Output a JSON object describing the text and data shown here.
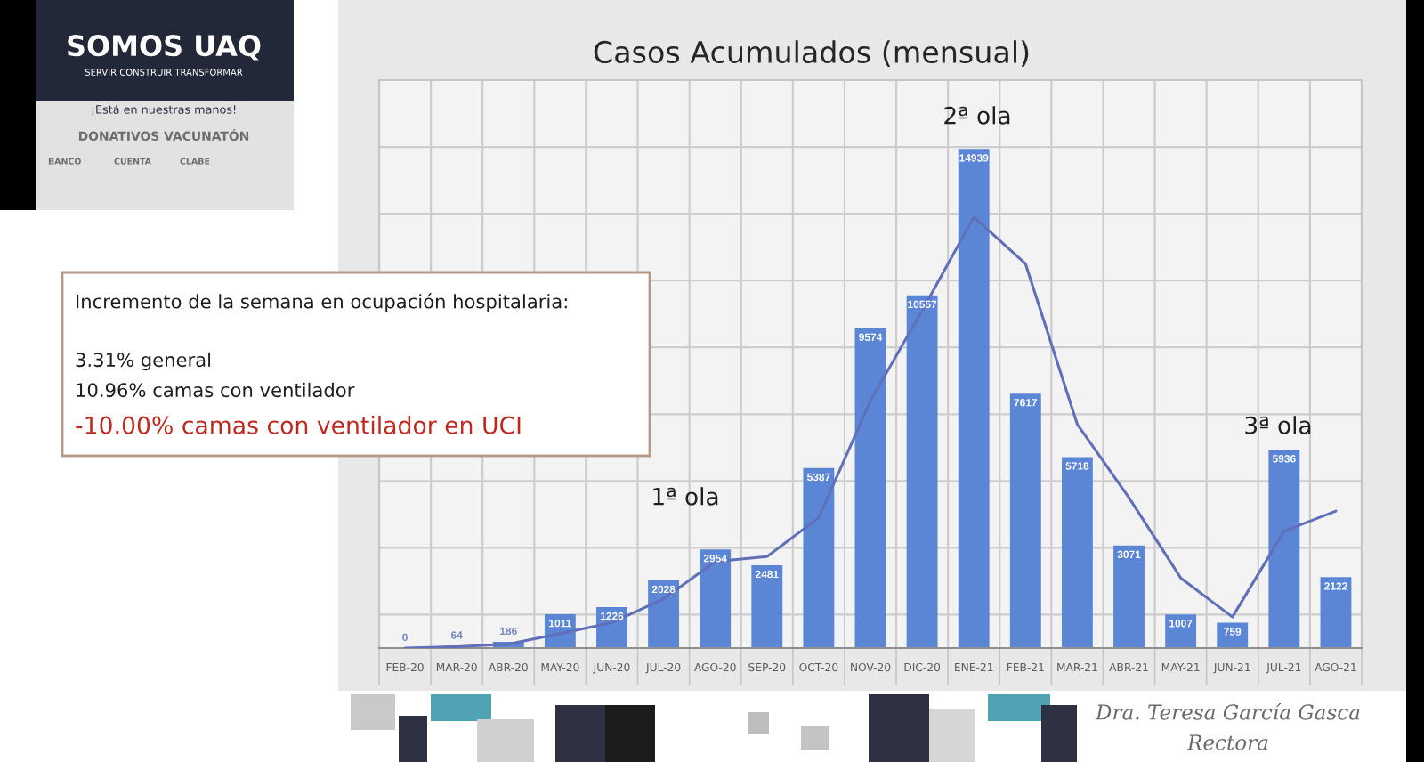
{
  "chart_data": {
    "type": "bar",
    "title": "Casos Acumulados (mensual)",
    "categories": [
      "FEB-20",
      "MAR-20",
      "ABR-20",
      "MAY-20",
      "JUN-20",
      "JUL-20",
      "AGO-20",
      "SEP-20",
      "OCT-20",
      "NOV-20",
      "DIC-20",
      "ENE-21",
      "FEB-21",
      "MAR-21",
      "ABR-21",
      "MAY-21",
      "JUN-21",
      "JUL-21",
      "AGO-21"
    ],
    "series": [
      {
        "color": "#5b86d6",
        "values": [
          0,
          64,
          186,
          1011,
          1226,
          2028,
          2954,
          2481,
          5387,
          9574,
          10557,
          14939,
          7617,
          5718,
          3071,
          1007,
          759,
          5936,
          2122
        ],
        "value_labels": [
          "0",
          "64",
          "186",
          "1011",
          "1226",
          "2028",
          "2954",
          "2481",
          "5387",
          "9574",
          "10557",
          "14939",
          "7617",
          "5718",
          "3071",
          "1007",
          "759",
          "5936",
          "2122"
        ]
      },
      {
        "type": "line",
        "color": "#6070b8",
        "values": [
          0,
          40,
          120,
          430,
          760,
          1470,
          2590,
          2740,
          3900,
          7400,
          10100,
          12900,
          11500,
          6700,
          4500,
          2100,
          930,
          3500,
          4100
        ]
      }
    ],
    "ylim": [
      0,
      17000
    ],
    "yticks": [
      {
        "value": 1000,
        "label": null
      },
      {
        "value": 3000,
        "label": null
      },
      {
        "value": 5000,
        "label": null
      },
      {
        "value": 7000,
        "label": null
      },
      {
        "value": 9000,
        "label": null
      },
      {
        "value": 11000,
        "label": null
      },
      {
        "value": 13000,
        "label": null
      },
      {
        "value": 15000,
        "label": null
      }
    ],
    "tick_labels": "x",
    "grid": true,
    "annotations": [
      "SOMOS UAQ",
      "SERVIR CONSTRUIR TRANSFORMAR",
      "¡Está en nuestras manos!",
      "DONATIVOS VACUNATÓN",
      "BANCO",
      "CUENTA",
      "CLABE",
      "Incremento de la semana en ocupación hospitalaria:",
      "3.31% general",
      "10.96% camas con ventilador",
      "-10.00% camas con ventilador en UCI",
      "Dra. Teresa García Gasca",
      "Rectora",
      "1ª ola",
      "2ª ola",
      "3ª ola"
    ]
  }
}
